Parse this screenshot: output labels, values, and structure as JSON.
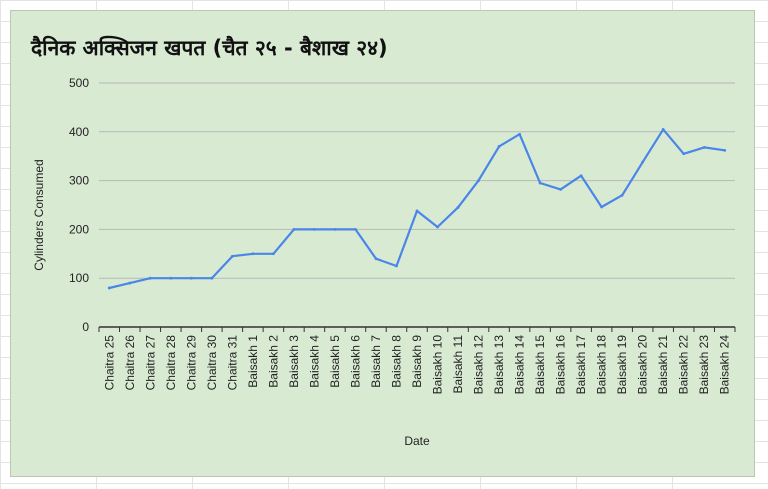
{
  "colors": {
    "background": "#d9ead3",
    "line": "#4a86e8",
    "gridline": "#b7b7b7",
    "axis": "#333333"
  },
  "chart_data": {
    "type": "line",
    "title": "दैनिक अक्सिजन खपत (चैत २५ - बैशाख २४)",
    "xlabel": "Date",
    "ylabel": "Cylinders Consumed",
    "ylim": [
      0,
      500
    ],
    "yticks": [
      0,
      100,
      200,
      300,
      400,
      500
    ],
    "grid": true,
    "legend": "none",
    "categories": [
      "Chaitra 25",
      "Chaitra 26",
      "Chaitra 27",
      "Chaitra 28",
      "Chaitra 29",
      "Chaitra 30",
      "Chaitra 31",
      "Baisakh 1",
      "Baisakh 2",
      "Baisakh 3",
      "Baisakh 4",
      "Baisakh 5",
      "Baisakh 6",
      "Baisakh 7",
      "Baisakh 8",
      "Baisakh 9",
      "Baisakh 10",
      "Baisakh 11",
      "Baisakh 12",
      "Baisakh 13",
      "Baisakh 14",
      "Baisakh 15",
      "Baisakh 16",
      "Baisakh 17",
      "Baisakh 18",
      "Baisakh 19",
      "Baisakh 20",
      "Baisakh 21",
      "Baisakh 22",
      "Baisakh 23",
      "Baisakh 24"
    ],
    "series": [
      {
        "values": [
          80,
          90,
          100,
          100,
          100,
          100,
          145,
          150,
          150,
          200,
          200,
          200,
          200,
          140,
          125,
          238,
          205,
          245,
          300,
          370,
          395,
          295,
          282,
          310,
          246,
          270,
          338,
          405,
          355,
          368,
          362
        ]
      }
    ]
  }
}
